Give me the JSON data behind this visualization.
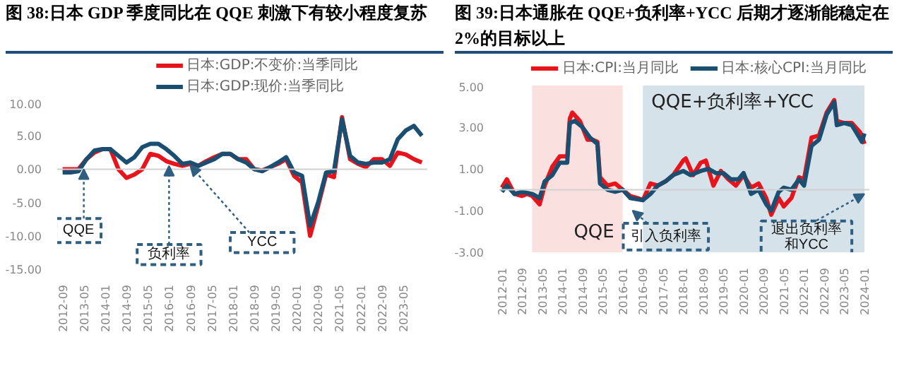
{
  "chart_data": [
    {
      "type": "line",
      "title": "图 38:日本 GDP 季度同比在 QQE 刺激下有较小程度复苏",
      "x": [
        "2012-09",
        "2012-12",
        "2013-03",
        "2013-06",
        "2013-09",
        "2013-12",
        "2014-03",
        "2014-06",
        "2014-09",
        "2014-12",
        "2015-03",
        "2015-06",
        "2015-09",
        "2015-12",
        "2016-03",
        "2016-06",
        "2016-09",
        "2016-12",
        "2017-03",
        "2017-06",
        "2017-09",
        "2017-12",
        "2018-03",
        "2018-06",
        "2018-09",
        "2018-12",
        "2019-03",
        "2019-06",
        "2019-09",
        "2019-12",
        "2020-03",
        "2020-06",
        "2020-09",
        "2020-12",
        "2021-03",
        "2021-06",
        "2021-09",
        "2021-12",
        "2022-03",
        "2022-06",
        "2022-09",
        "2022-12",
        "2023-03",
        "2023-06",
        "2023-09",
        "2023-12"
      ],
      "series": [
        {
          "name": "日本:GDP:不变价:当季同比",
          "color": "#e8141c",
          "values": [
            0.0,
            0.0,
            0.0,
            1.5,
            2.5,
            3.0,
            3.0,
            0.0,
            -1.3,
            -0.8,
            0.0,
            2.3,
            2.0,
            1.2,
            0.8,
            0.5,
            0.8,
            0.5,
            1.2,
            1.8,
            2.3,
            2.3,
            1.5,
            1.5,
            0.0,
            -0.2,
            0.3,
            0.8,
            1.5,
            -1.0,
            -2.0,
            -10.0,
            -5.5,
            -0.8,
            -1.2,
            7.8,
            1.5,
            0.8,
            0.3,
            1.5,
            1.5,
            0.5,
            2.5,
            2.2,
            1.5,
            1.0
          ]
        },
        {
          "name": "日本:GDP:现价:当季同比",
          "color": "#1b4f72",
          "values": [
            -0.5,
            -0.5,
            -0.3,
            1.5,
            2.8,
            3.0,
            3.0,
            2.0,
            1.0,
            1.8,
            3.3,
            3.8,
            3.8,
            3.0,
            2.0,
            0.8,
            1.0,
            0.5,
            1.0,
            1.5,
            2.3,
            2.3,
            1.5,
            1.0,
            0.0,
            -0.3,
            0.3,
            1.0,
            1.8,
            -0.5,
            -1.0,
            -8.5,
            -5.0,
            -0.5,
            -0.3,
            7.5,
            2.0,
            1.0,
            0.8,
            1.0,
            1.0,
            1.5,
            4.5,
            5.8,
            6.5,
            5.0
          ]
        }
      ],
      "xlim": [
        "2012-07",
        "2024-02"
      ],
      "xticks": [
        "2012-09",
        "2013-05",
        "2014-01",
        "2014-09",
        "2015-05",
        "2016-01",
        "2016-09",
        "2017-05",
        "2018-01",
        "2018-09",
        "2019-05",
        "2020-01",
        "2020-09",
        "2021-05",
        "2022-01",
        "2022-09",
        "2023-05"
      ],
      "ylim": [
        -15,
        10
      ],
      "yticks": [
        {
          "value": 10,
          "label": "10.00"
        },
        {
          "value": 5,
          "label": "5.00"
        },
        {
          "value": 0,
          "label": "0.00"
        },
        {
          "value": -5,
          "label": "-5.00"
        },
        {
          "value": -10,
          "label": "-10.00"
        },
        {
          "value": -15,
          "label": "-15.00"
        }
      ],
      "annotations": [
        {
          "text": "QQE",
          "x": "2013-05",
          "y": 0
        },
        {
          "text": "负利率",
          "x": "2016-01",
          "y": 0.5
        },
        {
          "text": "YCC",
          "x": "2016-09",
          "y": 0.5
        }
      ],
      "ref_lines": [
        {
          "axis": "y",
          "value": 0,
          "color": "#d0d0d0"
        }
      ],
      "grid": false,
      "legend": "top",
      "line_style": "solid",
      "marker": "none"
    },
    {
      "type": "line",
      "title": "图 39:日本通胀在 QQE+负利率+YCC 后期才逐渐能稳定在2%的目标以上",
      "series": [
        {
          "name": "日本:CPI:当月同比",
          "color": "#e8141c",
          "x": [
            "2012-01",
            "2012-03",
            "2012-06",
            "2012-09",
            "2012-11",
            "2013-01",
            "2013-04",
            "2013-06",
            "2013-09",
            "2013-12",
            "2014-03",
            "2014-04",
            "2014-05",
            "2014-08",
            "2014-11",
            "2015-01",
            "2015-03",
            "2015-04",
            "2015-07",
            "2015-10",
            "2016-01",
            "2016-04",
            "2016-07",
            "2016-09",
            "2016-12",
            "2017-03",
            "2017-06",
            "2017-09",
            "2018-01",
            "2018-02",
            "2018-05",
            "2018-08",
            "2018-10",
            "2019-01",
            "2019-04",
            "2019-07",
            "2019-10",
            "2020-01",
            "2020-04",
            "2020-07",
            "2020-10",
            "2020-12",
            "2021-03",
            "2021-05",
            "2021-08",
            "2021-11",
            "2022-01",
            "2022-04",
            "2022-07",
            "2022-10",
            "2023-01",
            "2023-02",
            "2023-05",
            "2023-08",
            "2023-11",
            "2023-12",
            "2024-01"
          ],
          "values": [
            0.1,
            0.5,
            -0.2,
            -0.3,
            -0.2,
            -0.3,
            -0.7,
            0.2,
            1.1,
            1.6,
            1.6,
            3.4,
            3.7,
            3.3,
            2.4,
            2.4,
            2.3,
            0.6,
            0.2,
            0.3,
            0.0,
            -0.3,
            -0.4,
            -0.5,
            0.3,
            0.2,
            0.4,
            0.7,
            1.4,
            1.5,
            0.7,
            1.3,
            1.4,
            0.2,
            0.9,
            0.5,
            0.2,
            0.7,
            0.1,
            0.3,
            -0.4,
            -1.2,
            -0.4,
            -0.8,
            -0.4,
            0.6,
            0.5,
            2.5,
            2.6,
            3.7,
            4.3,
            3.3,
            3.2,
            3.2,
            2.8,
            2.6,
            2.2
          ]
        },
        {
          "name": "日本:核心CPI:当月同比",
          "color": "#1b4f72",
          "x": [
            "2012-01",
            "2012-03",
            "2012-06",
            "2012-09",
            "2013-01",
            "2013-04",
            "2013-06",
            "2013-09",
            "2013-12",
            "2014-03",
            "2014-04",
            "2014-06",
            "2014-09",
            "2014-12",
            "2015-03",
            "2015-04",
            "2015-07",
            "2015-10",
            "2016-01",
            "2016-04",
            "2016-09",
            "2016-12",
            "2017-03",
            "2017-06",
            "2017-09",
            "2018-01",
            "2018-04",
            "2018-08",
            "2018-11",
            "2019-02",
            "2019-05",
            "2019-08",
            "2019-11",
            "2020-01",
            "2020-04",
            "2020-07",
            "2020-10",
            "2020-12",
            "2021-03",
            "2021-05",
            "2021-08",
            "2021-11",
            "2022-01",
            "2022-04",
            "2022-07",
            "2022-10",
            "2023-01",
            "2023-02",
            "2023-05",
            "2023-08",
            "2023-11",
            "2023-12",
            "2024-01"
          ],
          "values": [
            -0.1,
            0.2,
            -0.2,
            -0.1,
            -0.2,
            -0.4,
            0.4,
            0.7,
            1.3,
            1.3,
            3.2,
            3.3,
            3.0,
            2.5,
            2.2,
            0.3,
            0.0,
            -0.1,
            0.0,
            -0.4,
            -0.5,
            -0.2,
            0.2,
            0.4,
            0.7,
            0.9,
            0.7,
            0.9,
            1.0,
            0.8,
            0.8,
            0.5,
            0.5,
            0.8,
            -0.2,
            0.0,
            -0.7,
            -1.0,
            -0.1,
            0.1,
            0.0,
            0.5,
            0.2,
            2.1,
            2.4,
            3.6,
            4.2,
            3.1,
            3.2,
            3.1,
            2.5,
            2.3,
            2.7
          ]
        }
      ],
      "xlim": [
        "2011-12",
        "2024-03"
      ],
      "xticks": [
        "2012-01",
        "2012-09",
        "2013-05",
        "2014-01",
        "2014-09",
        "2015-05",
        "2016-01",
        "2016-09",
        "2017-05",
        "2018-01",
        "2018-09",
        "2019-05",
        "2020-01",
        "2020-09",
        "2021-05",
        "2022-01",
        "2022-09",
        "2023-05",
        "2024-01"
      ],
      "ylim": [
        -3,
        5
      ],
      "yticks": [
        {
          "value": 5,
          "label": "5.00"
        },
        {
          "value": 3,
          "label": "3.00"
        },
        {
          "value": 1,
          "label": "1.00"
        },
        {
          "value": -1,
          "label": "-1.00"
        },
        {
          "value": -3,
          "label": "-3.00"
        }
      ],
      "bands": [
        {
          "axis": "x",
          "from": "2013-01",
          "to": "2016-01",
          "label": "QQE",
          "color": "#fbe0e0"
        },
        {
          "axis": "x",
          "from": "2016-09",
          "to": "2024-01",
          "label": "QQE+负利率+YCC",
          "color": "#d5e2ea"
        }
      ],
      "ref_lines": [
        {
          "axis": "y",
          "value": 0,
          "color": "#d0d0d0"
        }
      ],
      "annotations": [
        "引入负利率",
        {
          "text": "退出负利率",
          "x": "2024-01",
          "y": -0.2
        },
        "和YCC"
      ],
      "grid": false,
      "legend": "top",
      "line_style": "solid",
      "marker": "none"
    }
  ]
}
